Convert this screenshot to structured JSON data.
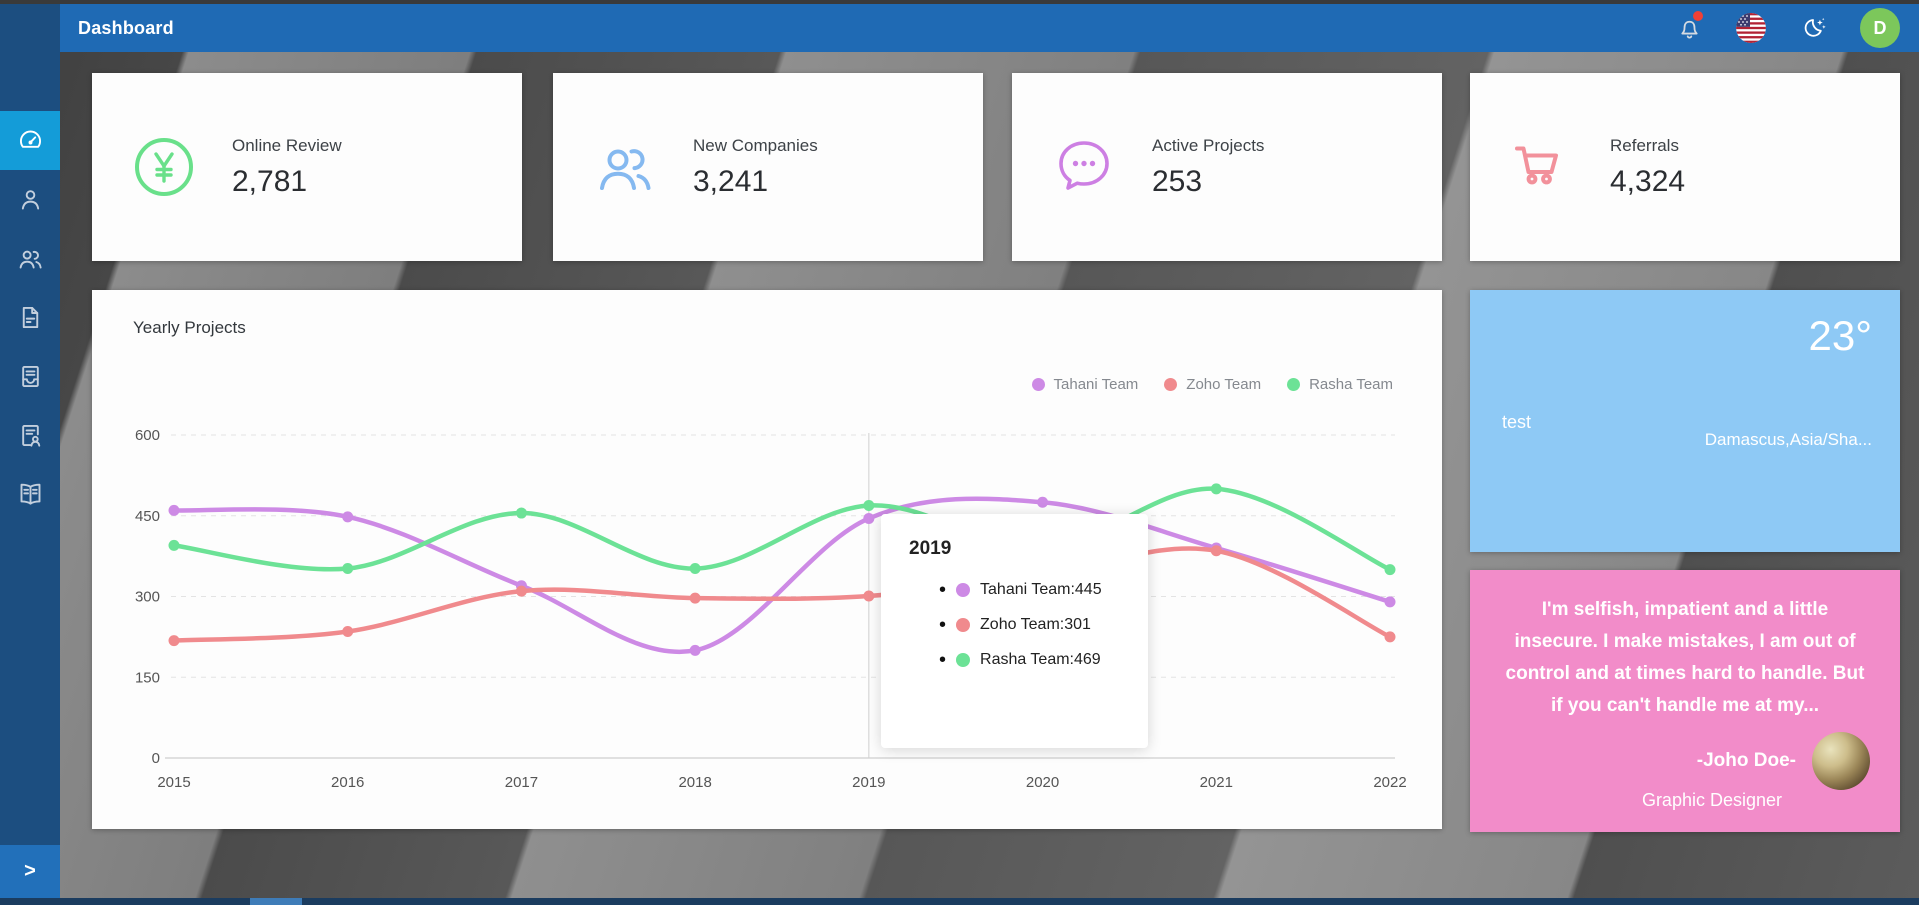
{
  "topbar": {
    "title": "Dashboard",
    "avatar_letter": "D"
  },
  "sidebar": {
    "expand_glyph": ">",
    "items": [
      {
        "icon": "dashboard-gauge-icon",
        "active": true
      },
      {
        "icon": "user-icon",
        "active": false
      },
      {
        "icon": "users-icon",
        "active": false
      },
      {
        "icon": "file-icon",
        "active": false
      },
      {
        "icon": "invoice-icon",
        "active": false
      },
      {
        "icon": "contract-icon",
        "active": false
      },
      {
        "icon": "book-icon",
        "active": false
      }
    ]
  },
  "stats": [
    {
      "label": "Online Review",
      "value": "2,781",
      "icon": "yen-circle-icon",
      "color": "#69e08a"
    },
    {
      "label": "New Companies",
      "value": "3,241",
      "icon": "users-icon",
      "color": "#85b9f0"
    },
    {
      "label": "Active Projects",
      "value": "253",
      "icon": "chat-bubble-icon",
      "color": "#cd7fe3"
    },
    {
      "label": "Referrals",
      "value": "4,324",
      "icon": "cart-icon",
      "color": "#f2919b"
    }
  ],
  "chart": {
    "title": "Yearly Projects",
    "legend": [
      {
        "label": "Tahani Team",
        "color": "#cd8ae5"
      },
      {
        "label": "Zoho Team",
        "color": "#f08a8d"
      },
      {
        "label": "Rasha Team",
        "color": "#6ce296"
      }
    ],
    "tooltip": {
      "title": "2019",
      "bullet": "•",
      "rows": [
        {
          "text": "Tahani Team:445",
          "color": "#cd8ae5"
        },
        {
          "text": "Zoho Team:301",
          "color": "#f08a8d"
        },
        {
          "text": "Rasha Team:469",
          "color": "#6ce296"
        }
      ]
    }
  },
  "chart_data": {
    "type": "line",
    "title": "Yearly Projects",
    "x": [
      2015,
      2016,
      2017,
      2018,
      2019,
      2020,
      2021,
      2022
    ],
    "series": [
      {
        "name": "Tahani Team",
        "color": "#cd8ae5",
        "values": [
          460,
          448,
          320,
          200,
          445,
          475,
          390,
          290
        ]
      },
      {
        "name": "Zoho Team",
        "color": "#f08a8d",
        "values": [
          218,
          235,
          310,
          297,
          301,
          340,
          385,
          225
        ]
      },
      {
        "name": "Rasha Team",
        "color": "#6ce296",
        "values": [
          395,
          352,
          455,
          352,
          469,
          390,
          500,
          350
        ]
      }
    ],
    "ylim": [
      0,
      600
    ],
    "yticks": [
      0,
      150,
      300,
      450,
      600
    ],
    "grid": "horizontal-dashed",
    "legend_position": "top-right",
    "crosshair_x": 2019,
    "tooltip": {
      "x": 2019,
      "values": {
        "Tahani Team": 445,
        "Zoho Team": 301,
        "Rasha Team": 469
      }
    }
  },
  "weather": {
    "temp": "23°",
    "name": "test",
    "location": "Damascus,Asia/Sha..."
  },
  "quote": {
    "text": "I'm selfish, impatient and a little insecure. I make mistakes, I am out of control and at times hard to handle. But if you can't handle me at my...",
    "author": "-Joho Doe-",
    "role": "Graphic Designer"
  }
}
